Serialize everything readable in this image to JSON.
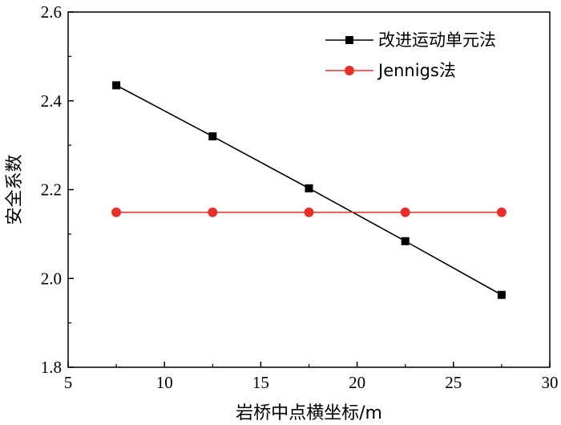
{
  "chart_data": {
    "type": "line",
    "title": "",
    "xlabel": "岩桥中点横坐标/m",
    "ylabel": "安全系数",
    "xlim": [
      5,
      30
    ],
    "ylim": [
      1.8,
      2.6
    ],
    "xticks": [
      5,
      10,
      15,
      20,
      25,
      30
    ],
    "yticks": [
      1.8,
      2.0,
      2.2,
      2.4,
      2.6
    ],
    "xtick_labels": [
      "5",
      "10",
      "15",
      "20",
      "25",
      "30"
    ],
    "ytick_labels": [
      "1.8",
      "2.0",
      "2.2",
      "2.4",
      "2.6"
    ],
    "legend_position": "top-right",
    "grid": false,
    "series": [
      {
        "name": "改进运动单元法",
        "color": "#000000",
        "marker": "square",
        "x": [
          7.5,
          12.5,
          17.5,
          22.5,
          27.5
        ],
        "y": [
          2.435,
          2.32,
          2.203,
          2.084,
          1.963
        ]
      },
      {
        "name": "Jennigs法",
        "color": "#e8302a",
        "marker": "circle",
        "x": [
          7.5,
          12.5,
          17.5,
          22.5,
          27.5
        ],
        "y": [
          2.149,
          2.149,
          2.149,
          2.149,
          2.149
        ]
      }
    ]
  }
}
